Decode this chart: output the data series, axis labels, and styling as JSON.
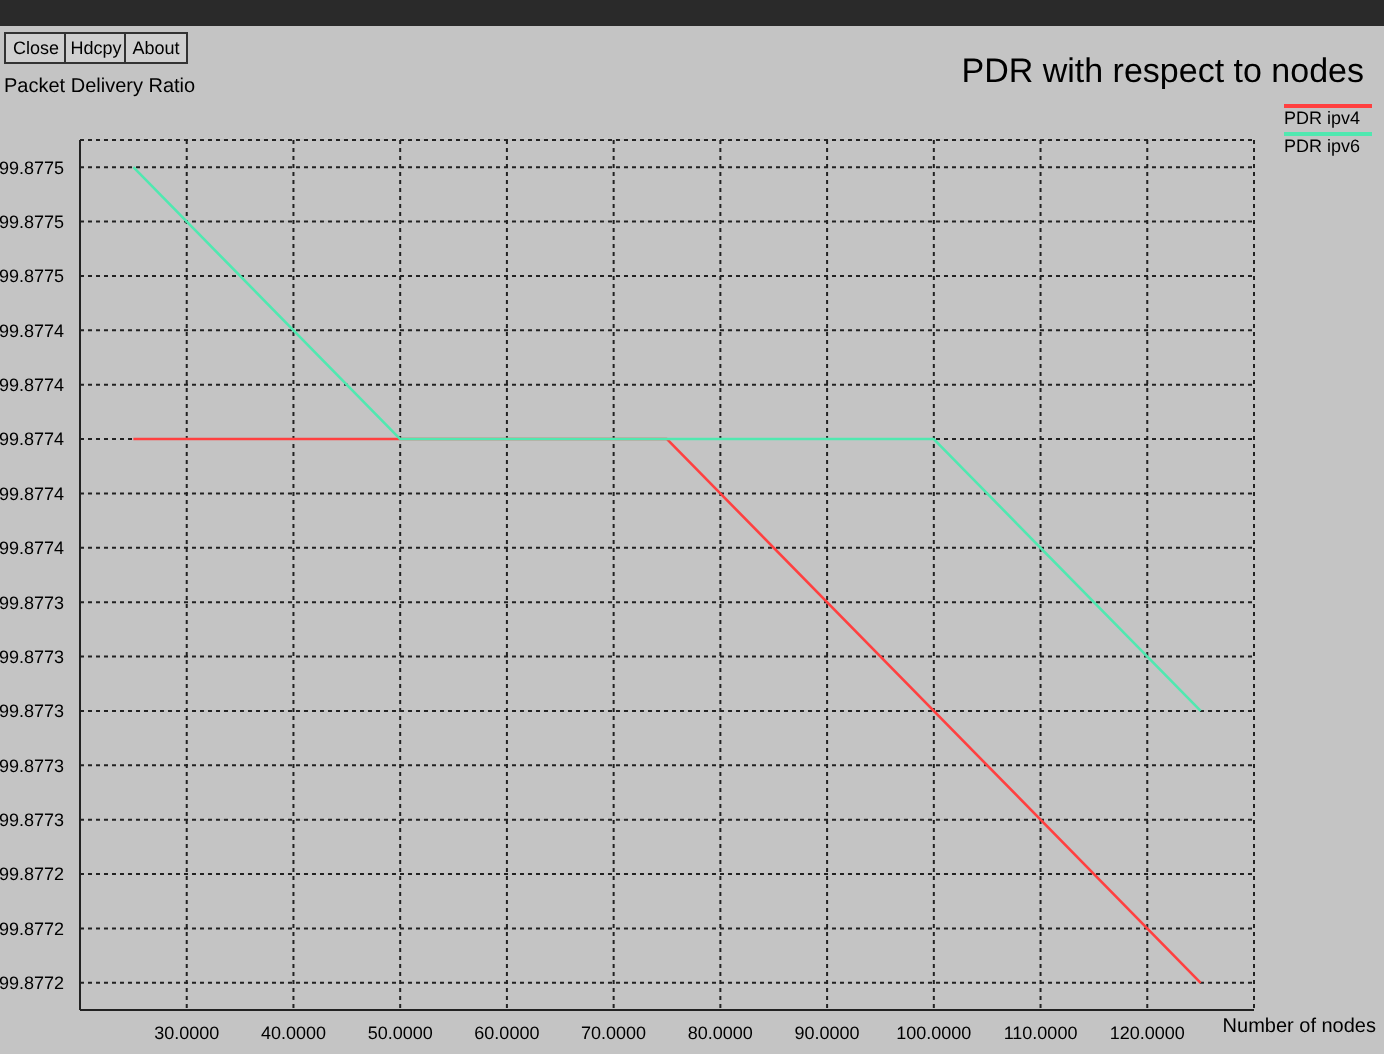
{
  "chart_data": {
    "type": "line",
    "title": "PDR with respect to nodes",
    "xlabel": "Number of nodes",
    "ylabel": "Packet Delivery Ratio",
    "annotations": [
      "Close",
      "Hdcpy",
      "About"
    ],
    "series": [
      {
        "name": "PDR ipv4",
        "color": "#ff4040",
        "x": [
          25,
          75,
          125
        ],
        "values": [
          99.8774,
          99.8774,
          99.8772
        ]
      },
      {
        "name": "PDR ipv6",
        "color": "#50e8b0",
        "x": [
          25,
          50,
          100,
          125
        ],
        "values": [
          99.8775,
          99.8774,
          99.8774,
          99.8773
        ]
      }
    ],
    "xlim": [
      20,
      130
    ],
    "xticks": [
      {
        "value": 30,
        "label": "30.0000"
      },
      {
        "value": 40,
        "label": "40.0000"
      },
      {
        "value": 50,
        "label": "50.0000"
      },
      {
        "value": 60,
        "label": "60.0000"
      },
      {
        "value": 70,
        "label": "70.0000"
      },
      {
        "value": 80,
        "label": "80.0000"
      },
      {
        "value": 90,
        "label": "90.0000"
      },
      {
        "value": 100,
        "label": "100.0000"
      },
      {
        "value": 110,
        "label": "110.0000"
      },
      {
        "value": 120,
        "label": "120.0000"
      }
    ],
    "ylim": [
      99.87719,
      99.87751
    ],
    "yticks": [
      {
        "value": 99.8775,
        "label": "99.8775"
      },
      {
        "value": 99.87748,
        "label": "99.8775"
      },
      {
        "value": 99.87746,
        "label": "99.8775"
      },
      {
        "value": 99.87744,
        "label": "99.8774"
      },
      {
        "value": 99.87742,
        "label": "99.8774"
      },
      {
        "value": 99.8774,
        "label": "99.8774"
      },
      {
        "value": 99.87738,
        "label": "99.8774"
      },
      {
        "value": 99.87736,
        "label": "99.8774"
      },
      {
        "value": 99.87734,
        "label": "99.8773"
      },
      {
        "value": 99.87732,
        "label": "99.8773"
      },
      {
        "value": 99.8773,
        "label": "99.8773"
      },
      {
        "value": 99.87728,
        "label": "99.8773"
      },
      {
        "value": 99.87726,
        "label": "99.8773"
      },
      {
        "value": 99.87724,
        "label": "99.8772"
      },
      {
        "value": 99.87722,
        "label": "99.8772"
      },
      {
        "value": 99.8772,
        "label": "99.8772"
      }
    ],
    "grid": true,
    "legend": "top right",
    "marker": "none",
    "line_style": "solid"
  }
}
